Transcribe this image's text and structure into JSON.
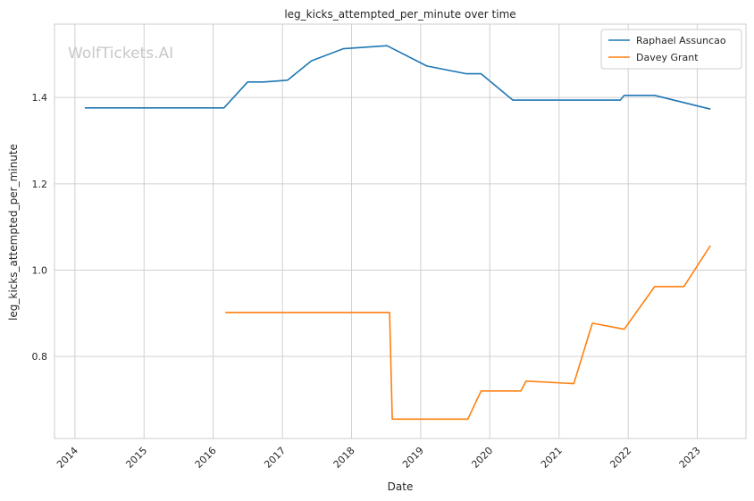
{
  "chart_data": {
    "type": "line",
    "title": "leg_kicks_attempted_per_minute over time",
    "xlabel": "Date",
    "ylabel": "leg_kicks_attempted_per_minute",
    "watermark": "WolfTickets.AI",
    "xlim": [
      "2013-09-15",
      "2023-09-15"
    ],
    "ylim": [
      0.61,
      1.57
    ],
    "x_ticks": [
      "2014",
      "2015",
      "2016",
      "2017",
      "2018",
      "2019",
      "2020",
      "2021",
      "2022",
      "2023"
    ],
    "y_ticks": [
      0.8,
      1.0,
      1.2,
      1.4
    ],
    "grid": true,
    "legend_position": "top-right",
    "series": [
      {
        "name": "Raphael Assuncao",
        "color": "#1f77b4",
        "points": [
          {
            "x": "2014-02-22",
            "y": 1.376
          },
          {
            "x": "2016-02-27",
            "y": 1.376
          },
          {
            "x": "2016-07-01",
            "y": 1.436
          },
          {
            "x": "2016-09-24",
            "y": 1.436
          },
          {
            "x": "2017-01-28",
            "y": 1.44
          },
          {
            "x": "2017-06-03",
            "y": 1.485
          },
          {
            "x": "2017-11-18",
            "y": 1.513
          },
          {
            "x": "2018-07-07",
            "y": 1.52
          },
          {
            "x": "2019-02-02",
            "y": 1.473
          },
          {
            "x": "2019-08-31",
            "y": 1.455
          },
          {
            "x": "2019-11-16",
            "y": 1.455
          },
          {
            "x": "2020-05-02",
            "y": 1.394
          },
          {
            "x": "2021-11-20",
            "y": 1.394
          },
          {
            "x": "2021-12-11",
            "y": 1.405
          },
          {
            "x": "2022-05-21",
            "y": 1.405
          },
          {
            "x": "2023-03-11",
            "y": 1.373
          }
        ]
      },
      {
        "name": "Davey Grant",
        "color": "#ff7f0e",
        "points": [
          {
            "x": "2016-03-05",
            "y": 0.902
          },
          {
            "x": "2018-07-21",
            "y": 0.902
          },
          {
            "x": "2018-08-04",
            "y": 0.655
          },
          {
            "x": "2019-09-07",
            "y": 0.655
          },
          {
            "x": "2019-11-16",
            "y": 0.72
          },
          {
            "x": "2020-06-13",
            "y": 0.72
          },
          {
            "x": "2020-07-11",
            "y": 0.743
          },
          {
            "x": "2021-03-20",
            "y": 0.737
          },
          {
            "x": "2021-06-26",
            "y": 0.877
          },
          {
            "x": "2021-12-11",
            "y": 0.863
          },
          {
            "x": "2022-05-21",
            "y": 0.962
          },
          {
            "x": "2022-10-22",
            "y": 0.962
          },
          {
            "x": "2023-03-11",
            "y": 1.057
          }
        ]
      }
    ]
  }
}
